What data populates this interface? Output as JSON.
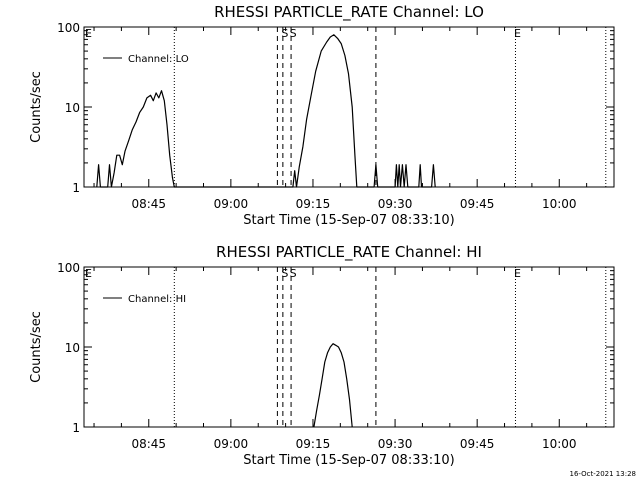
{
  "footer": {
    "timestamp": "16-Oct-2021 13:28"
  },
  "chart_data": [
    {
      "type": "line",
      "title": "RHESSI PARTICLE_RATE Channel: LO",
      "xlabel": "Start Time (15-Sep-07 08:33:10)",
      "ylabel": "Counts/sec",
      "y_scale": "log",
      "xlim": [
        "08:33:10",
        "10:10:00"
      ],
      "ylim": [
        1,
        100
      ],
      "x_ticks": [
        "08:45",
        "09:00",
        "09:15",
        "09:30",
        "09:45",
        "10:00"
      ],
      "y_ticks": [
        "1",
        "10",
        "100"
      ],
      "legend": {
        "label": "Channel: LO",
        "placement": "top-left"
      },
      "markers": [
        {
          "time": "08:49:40",
          "label": "",
          "style": "dotted"
        },
        {
          "time": "09:08:30",
          "label": "",
          "style": "dashed"
        },
        {
          "time": "09:09:30",
          "label": "S",
          "style": "dashed"
        },
        {
          "time": "09:11:00",
          "label": "S",
          "style": "dashed"
        },
        {
          "time": "09:26:30",
          "label": "",
          "style": "dashed"
        },
        {
          "time": "09:52:00",
          "label": "E",
          "style": "dotted"
        },
        {
          "time": "10:08:30",
          "label": "",
          "style": "dotted"
        }
      ],
      "corner_label": "E",
      "series": [
        {
          "name": "Channel: LO",
          "points": [
            [
              "08:35:30",
              1
            ],
            [
              "08:35:50",
              1.9
            ],
            [
              "08:36:10",
              1
            ],
            [
              "08:37:30",
              1
            ],
            [
              "08:37:50",
              1.9
            ],
            [
              "08:38:10",
              1
            ],
            [
              "08:38:40",
              1.5
            ],
            [
              "08:39:10",
              2.5
            ],
            [
              "08:39:40",
              2.5
            ],
            [
              "08:40:10",
              1.9
            ],
            [
              "08:40:40",
              2.8
            ],
            [
              "08:41:20",
              3.8
            ],
            [
              "08:42:00",
              5.2
            ],
            [
              "08:42:40",
              6.5
            ],
            [
              "08:43:20",
              8.5
            ],
            [
              "08:44:00",
              10
            ],
            [
              "08:44:40",
              13
            ],
            [
              "08:45:20",
              14
            ],
            [
              "08:45:50",
              12
            ],
            [
              "08:46:20",
              15
            ],
            [
              "08:46:50",
              13
            ],
            [
              "08:47:20",
              16
            ],
            [
              "08:47:50",
              12
            ],
            [
              "08:48:20",
              6
            ],
            [
              "08:48:50",
              2.5
            ],
            [
              "08:49:20",
              1.3
            ],
            [
              "08:49:40",
              1
            ],
            [
              "09:11:20",
              1
            ],
            [
              "09:11:40",
              1.6
            ],
            [
              "09:12:00",
              1
            ],
            [
              "09:12:30",
              1.8
            ],
            [
              "09:13:10",
              3.2
            ],
            [
              "09:13:50",
              7
            ],
            [
              "09:14:40",
              14
            ],
            [
              "09:15:30",
              28
            ],
            [
              "09:16:30",
              50
            ],
            [
              "09:17:30",
              65
            ],
            [
              "09:18:10",
              75
            ],
            [
              "09:18:50",
              80
            ],
            [
              "09:19:30",
              72
            ],
            [
              "09:20:10",
              62
            ],
            [
              "09:20:50",
              44
            ],
            [
              "09:21:30",
              26
            ],
            [
              "09:22:10",
              10
            ],
            [
              "09:22:40",
              2.5
            ],
            [
              "09:23:00",
              1
            ],
            [
              "09:26:10",
              1
            ],
            [
              "09:26:30",
              1.9
            ],
            [
              "09:26:50",
              1
            ],
            [
              "09:30:00",
              1
            ],
            [
              "09:30:15",
              1.9
            ],
            [
              "09:30:30",
              1
            ],
            [
              "09:30:45",
              1.9
            ],
            [
              "09:31:00",
              1
            ],
            [
              "09:31:20",
              1.9
            ],
            [
              "09:31:40",
              1
            ],
            [
              "09:32:00",
              1.9
            ],
            [
              "09:32:20",
              1
            ],
            [
              "09:34:20",
              1
            ],
            [
              "09:34:35",
              1.9
            ],
            [
              "09:34:50",
              1
            ],
            [
              "09:36:40",
              1
            ],
            [
              "09:37:00",
              1.9
            ],
            [
              "09:37:20",
              1
            ]
          ]
        }
      ]
    },
    {
      "type": "line",
      "title": "RHESSI PARTICLE_RATE Channel: HI",
      "xlabel": "Start Time (15-Sep-07 08:33:10)",
      "ylabel": "Counts/sec",
      "y_scale": "log",
      "xlim": [
        "08:33:10",
        "10:10:00"
      ],
      "ylim": [
        1,
        100
      ],
      "x_ticks": [
        "08:45",
        "09:00",
        "09:15",
        "09:30",
        "09:45",
        "10:00"
      ],
      "y_ticks": [
        "1",
        "10",
        "100"
      ],
      "legend": {
        "label": "Channel: HI",
        "placement": "top-left"
      },
      "markers": [
        {
          "time": "08:49:40",
          "label": "",
          "style": "dotted"
        },
        {
          "time": "09:08:30",
          "label": "",
          "style": "dashed"
        },
        {
          "time": "09:09:30",
          "label": "S",
          "style": "dashed"
        },
        {
          "time": "09:11:00",
          "label": "S",
          "style": "dashed"
        },
        {
          "time": "09:26:30",
          "label": "",
          "style": "dashed"
        },
        {
          "time": "09:52:00",
          "label": "E",
          "style": "dotted"
        },
        {
          "time": "10:08:30",
          "label": "",
          "style": "dotted"
        }
      ],
      "corner_label": "E",
      "series": [
        {
          "name": "Channel: HI",
          "points": [
            [
              "09:15:10",
              1
            ],
            [
              "09:15:40",
              1.6
            ],
            [
              "09:16:10",
              2.5
            ],
            [
              "09:16:40",
              4
            ],
            [
              "09:17:10",
              6.5
            ],
            [
              "09:17:40",
              8.5
            ],
            [
              "09:18:10",
              10
            ],
            [
              "09:18:40",
              11
            ],
            [
              "09:19:10",
              10.5
            ],
            [
              "09:19:40",
              10
            ],
            [
              "09:20:10",
              8.5
            ],
            [
              "09:20:40",
              6.5
            ],
            [
              "09:21:10",
              4
            ],
            [
              "09:21:40",
              2.2
            ],
            [
              "09:22:10",
              1
            ]
          ]
        }
      ]
    }
  ]
}
